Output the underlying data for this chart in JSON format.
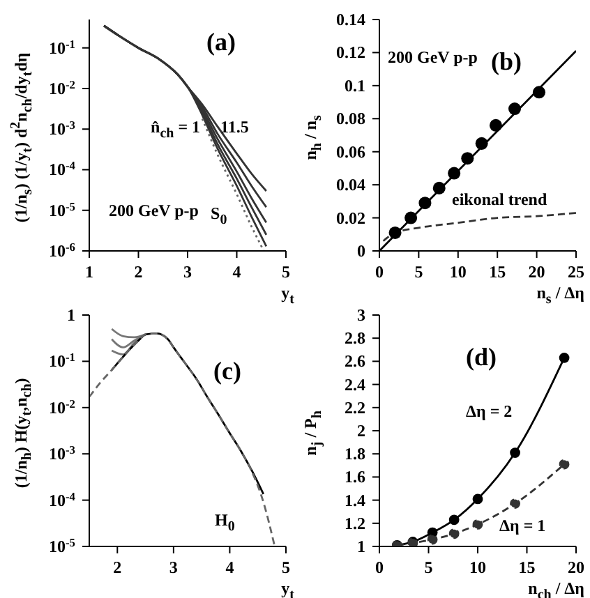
{
  "chart_data": [
    {
      "type": "line",
      "log": "y",
      "xlabel": "y$_{t}$",
      "ylabel": "(1/n$_{s}$) (1/y$_{t}$) d$^{2}$n$_{ch}$/dy$_{t}$dη",
      "xlim": [
        1,
        5
      ],
      "xticks": [
        1,
        2,
        3,
        4,
        5
      ],
      "ylim": [
        1e-06,
        0.5
      ],
      "yticks": [
        {
          "value": 0.1,
          "label": "10$^{-1}$"
        },
        {
          "value": 0.01,
          "label": "10$^{-2}$"
        },
        {
          "value": 0.001,
          "label": "10$^{-3}$"
        },
        {
          "value": 0.0001,
          "label": "10$^{-4}$"
        },
        {
          "value": 1e-05,
          "label": "10$^{-5}$"
        },
        {
          "value": 1e-06,
          "label": "10$^{-6}$"
        }
      ],
      "annotations": [
        "(a)",
        "200 GeV p-p",
        "n̂$_{ch}$ = 1",
        "11.5"
      ],
      "x": [
        1.3,
        1.6,
        2.0,
        2.4,
        2.8,
        3.0,
        3.3,
        3.6,
        4.0,
        4.3,
        4.6
      ],
      "series": [
        {
          "color": "#333333",
          "line_style": "solid",
          "values": [
            0.35,
            0.2,
            0.1,
            0.055,
            0.022,
            0.011,
            0.004,
            0.0012,
            0.00025,
            8e-05,
            3e-05
          ]
        },
        {
          "color": "#333333",
          "line_style": "solid",
          "values": [
            0.35,
            0.2,
            0.1,
            0.055,
            0.022,
            0.011,
            0.0035,
            0.0008,
            0.00015,
            4e-05,
            1.2e-05
          ]
        },
        {
          "color": "#333333",
          "line_style": "solid",
          "values": [
            0.35,
            0.2,
            0.1,
            0.055,
            0.022,
            0.011,
            0.003,
            0.0006,
            9e-05,
            2e-05,
            5e-06
          ]
        },
        {
          "color": "#333333",
          "line_style": "solid",
          "values": [
            0.35,
            0.2,
            0.1,
            0.055,
            0.022,
            0.011,
            0.0026,
            0.00045,
            6e-05,
            1.2e-05,
            2.5e-06
          ]
        },
        {
          "color": "#333333",
          "line_style": "solid",
          "values": [
            0.35,
            0.2,
            0.1,
            0.055,
            0.022,
            0.011,
            0.0022,
            0.00035,
            4e-05,
            7e-06,
            1.3e-06
          ]
        },
        {
          "name": "S$_{0}$",
          "color": "#666666",
          "line_style": "dotted",
          "x": [
            3.3,
            3.6,
            4.0,
            4.3,
            4.55
          ],
          "values": [
            0.0018,
            0.00025,
            2.5e-05,
            4e-06,
            1e-06
          ]
        }
      ]
    },
    {
      "type": "line",
      "xlabel": "n$_{s}$ / Δη",
      "ylabel": "n$_{h}$ / n$_{s}$",
      "xlim": [
        0,
        25
      ],
      "xticks": [
        0,
        5,
        10,
        15,
        20,
        25
      ],
      "ylim": [
        0,
        0.14
      ],
      "yticks": [
        0,
        0.02,
        0.04,
        0.06,
        0.08,
        0.1,
        0.12,
        0.14
      ],
      "annotations": [
        "(b)",
        "200 GeV p-p"
      ],
      "series": [
        {
          "type": "scatter",
          "marker": "circle",
          "color": "#000000",
          "x": [
            2,
            4,
            5.8,
            7.6,
            9.5,
            11.2,
            13,
            14.8,
            17.2,
            20.3
          ],
          "values": [
            0.011,
            0.02,
            0.029,
            0.038,
            0.047,
            0.056,
            0.065,
            0.076,
            0.086,
            0.096
          ]
        },
        {
          "color": "#000000",
          "line_style": "solid",
          "x": [
            0,
            25
          ],
          "values": [
            0,
            0.121
          ]
        },
        {
          "name": "eikonal trend",
          "color": "#333333",
          "line_style": "dashed",
          "x": [
            0.5,
            2,
            5,
            10,
            15,
            20,
            25
          ],
          "values": [
            0.006,
            0.011,
            0.014,
            0.017,
            0.02,
            0.021,
            0.023
          ]
        }
      ]
    },
    {
      "type": "line",
      "log": "y",
      "xlabel": "y$_{t}$",
      "ylabel": "(1/n$_{h}$) H(y$_{t}$,n$_{ch}$)",
      "xlim": [
        1.5,
        5
      ],
      "xticks": [
        2,
        3,
        4,
        5
      ],
      "ylim": [
        1e-05,
        1
      ],
      "yticks": [
        1,
        {
          "value": 0.1,
          "label": "10$^{-1}$"
        },
        {
          "value": 0.01,
          "label": "10$^{-2}$"
        },
        {
          "value": 0.001,
          "label": "10$^{-3}$"
        },
        {
          "value": 0.0001,
          "label": "10$^{-4}$"
        },
        {
          "value": 1e-05,
          "label": "10$^{-5}$"
        }
      ],
      "annotations": [
        "(c)"
      ],
      "series": [
        {
          "color": "#777777",
          "line_style": "solid",
          "x": [
            1.9,
            2.1,
            2.3,
            2.5
          ],
          "values": [
            0.5,
            0.35,
            0.33,
            0.38
          ]
        },
        {
          "color": "#777777",
          "line_style": "solid",
          "x": [
            1.9,
            2.1,
            2.3,
            2.5
          ],
          "values": [
            0.3,
            0.2,
            0.28,
            0.38
          ]
        },
        {
          "color": "#777777",
          "line_style": "solid",
          "x": [
            1.9,
            2.1,
            2.3,
            2.5
          ],
          "values": [
            0.17,
            0.14,
            0.25,
            0.38
          ]
        },
        {
          "color": "#000000",
          "line_style": "solid",
          "x": [
            1.9,
            2.0,
            2.2,
            2.4,
            2.5,
            2.7,
            2.9,
            3.0,
            3.2,
            3.4,
            3.6,
            3.8,
            4.0,
            4.2,
            4.4,
            4.6
          ],
          "values": [
            0.065,
            0.09,
            0.17,
            0.3,
            0.38,
            0.4,
            0.3,
            0.2,
            0.093,
            0.043,
            0.017,
            0.007,
            0.0028,
            0.00115,
            0.00042,
            0.000135
          ]
        },
        {
          "name": "H$_{0}$",
          "color": "#666666",
          "line_style": "dashed",
          "x": [
            1.5,
            1.7,
            1.9,
            2.0,
            2.2,
            2.4,
            2.5,
            2.7,
            2.9,
            3.0,
            3.2,
            3.4,
            3.6,
            3.8,
            4.0,
            4.2,
            4.4,
            4.6,
            4.8
          ],
          "values": [
            0.017,
            0.035,
            0.065,
            0.09,
            0.17,
            0.3,
            0.38,
            0.4,
            0.3,
            0.2,
            0.093,
            0.043,
            0.017,
            0.007,
            0.0028,
            0.00115,
            0.0004,
            9e-05,
            1e-05
          ]
        }
      ]
    },
    {
      "type": "line",
      "xlabel": "n$_{ch}$ / Δη",
      "ylabel": "n$_{j}$ / P$_{h}$",
      "xlim": [
        0,
        20
      ],
      "xticks": [
        0,
        5,
        10,
        15,
        20
      ],
      "ylim": [
        1,
        3
      ],
      "yticks": [
        1,
        1.2,
        1.4,
        1.6,
        1.8,
        2,
        2.2,
        2.4,
        2.6,
        2.8,
        3
      ],
      "annotations": [
        "(d)"
      ],
      "x": [
        1.8,
        3.4,
        5.4,
        7.6,
        10,
        13.8,
        18.8
      ],
      "series": [
        {
          "name": "Δη = 2",
          "marker": "circle",
          "color": "#000000",
          "line_style": "solid",
          "values": [
            1.01,
            1.04,
            1.12,
            1.23,
            1.41,
            1.81,
            2.63
          ]
        },
        {
          "name": "Δη = 1",
          "marker": "circle",
          "color": "#333333",
          "line_style": "dashed",
          "values": [
            1.01,
            1.03,
            1.06,
            1.11,
            1.19,
            1.37,
            1.71
          ]
        }
      ]
    }
  ]
}
